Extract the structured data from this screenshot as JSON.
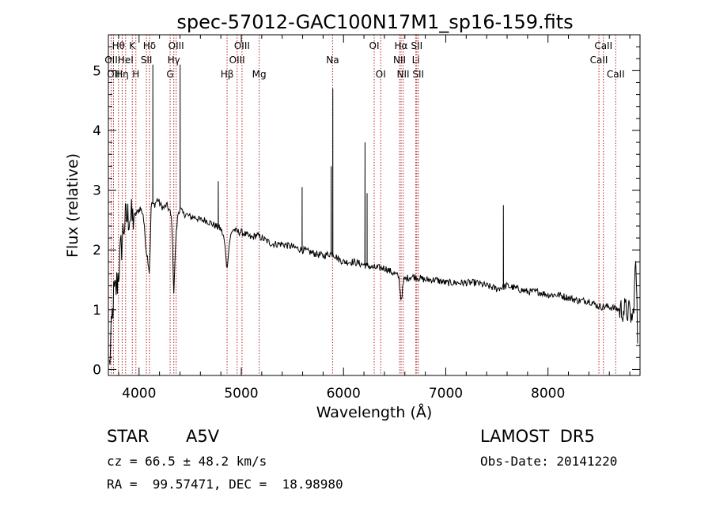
{
  "chart_data": {
    "type": "line",
    "title": "spec-57012-GAC100N17M1_sp16-159.fits",
    "xlabel": "Wavelength (Å)",
    "ylabel": "Flux (relative)",
    "xlim": [
      3700,
      8900
    ],
    "ylim": [
      -0.1,
      5.6
    ],
    "x_ticks": [
      4000,
      5000,
      6000,
      7000,
      8000
    ],
    "y_ticks": [
      0,
      1,
      2,
      3,
      4,
      5
    ],
    "grid": false,
    "line_color": "#000000",
    "marker_color": "#b22222",
    "series": [
      {
        "x": [
          3710,
          3730,
          3750,
          3770,
          3790,
          3810,
          3830,
          3850,
          3870,
          3890,
          3910,
          3930,
          3950,
          3970,
          3990,
          4010,
          4040,
          4070,
          4090,
          4102,
          4120,
          4150,
          4180,
          4210,
          4240,
          4270,
          4300,
          4320,
          4340,
          4360,
          4380,
          4400,
          4430,
          4460,
          4500,
          4550,
          4600,
          4650,
          4700,
          4750,
          4800,
          4830,
          4850,
          4861,
          4870,
          4890,
          4920,
          4960,
          5000,
          5050,
          5100,
          5150,
          5200,
          5300,
          5400,
          5500,
          5600,
          5700,
          5800,
          5890,
          5950,
          6000,
          6100,
          6200,
          6300,
          6400,
          6500,
          6540,
          6563,
          6590,
          6650,
          6700,
          6800,
          6900,
          7000,
          7100,
          7200,
          7300,
          7400,
          7500,
          7600,
          7700,
          7800,
          7900,
          8000,
          8100,
          8200,
          8300,
          8400,
          8500,
          8600,
          8700,
          8750,
          8800,
          8830,
          8860,
          8880
        ],
        "y": [
          0.05,
          0.6,
          1.2,
          1.3,
          1.5,
          1.8,
          2.1,
          2.4,
          2.5,
          2.55,
          2.6,
          2.5,
          2.55,
          2.6,
          2.65,
          2.7,
          2.6,
          2.0,
          1.8,
          1.6,
          2.8,
          2.75,
          2.85,
          2.75,
          2.7,
          2.75,
          2.65,
          2.5,
          1.3,
          2.2,
          2.6,
          2.7,
          2.6,
          2.6,
          2.55,
          2.55,
          2.5,
          2.5,
          2.45,
          2.4,
          2.35,
          2.2,
          1.9,
          1.65,
          1.9,
          2.2,
          2.35,
          2.3,
          2.3,
          2.25,
          2.2,
          2.25,
          2.2,
          2.1,
          2.1,
          2.05,
          2.0,
          1.95,
          1.9,
          1.95,
          1.85,
          1.8,
          1.8,
          1.75,
          1.7,
          1.7,
          1.6,
          1.55,
          1.15,
          1.5,
          1.55,
          1.55,
          1.5,
          1.5,
          1.45,
          1.45,
          1.45,
          1.45,
          1.4,
          1.35,
          1.4,
          1.35,
          1.3,
          1.3,
          1.25,
          1.25,
          1.2,
          1.15,
          1.15,
          1.05,
          1.05,
          1.0,
          1.0,
          0.95,
          0.8,
          1.85,
          0.2
        ]
      }
    ],
    "spikes": [
      {
        "x": 4135,
        "y": 5.1
      },
      {
        "x": 4402,
        "y": 5.1
      },
      {
        "x": 4775,
        "y": 3.15
      },
      {
        "x": 5595,
        "y": 3.05
      },
      {
        "x": 5879,
        "y": 3.4
      },
      {
        "x": 5895,
        "y": 4.7
      },
      {
        "x": 6210,
        "y": 3.8
      },
      {
        "x": 6230,
        "y": 2.95
      },
      {
        "x": 7564,
        "y": 2.75
      }
    ],
    "lines": [
      {
        "x": 3727,
        "label": "OII",
        "row": 1
      },
      {
        "x": 3750,
        "label": "OII",
        "row": 2
      },
      {
        "x": 3799,
        "label": "Hθ",
        "row": 0
      },
      {
        "x": 3835,
        "label": "Hη",
        "row": 2
      },
      {
        "x": 3869,
        "label": "HeI",
        "row": 1
      },
      {
        "x": 3934,
        "label": "K",
        "row": 0
      },
      {
        "x": 3969,
        "label": "H",
        "row": 2
      },
      {
        "x": 4072,
        "label": "SII",
        "row": 1
      },
      {
        "x": 4102,
        "label": "Hδ",
        "row": 0
      },
      {
        "x": 4304,
        "label": "G",
        "row": 2
      },
      {
        "x": 4340,
        "label": "Hγ",
        "row": 1
      },
      {
        "x": 4363,
        "label": "OIII",
        "row": 0
      },
      {
        "x": 4861,
        "label": "Hβ",
        "row": 2
      },
      {
        "x": 4959,
        "label": "OIII",
        "row": 1
      },
      {
        "x": 5007,
        "label": "OIII",
        "row": 0
      },
      {
        "x": 5175,
        "label": "Mg",
        "row": 2
      },
      {
        "x": 5893,
        "label": "Na",
        "row": 1
      },
      {
        "x": 6300,
        "label": "OI",
        "row": 0
      },
      {
        "x": 6364,
        "label": "OI",
        "row": 2
      },
      {
        "x": 6548,
        "label": "NII",
        "row": 1
      },
      {
        "x": 6563,
        "label": "Hα",
        "row": 0
      },
      {
        "x": 6583,
        "label": "NII",
        "row": 2
      },
      {
        "x": 6707,
        "label": "Li",
        "row": 1
      },
      {
        "x": 6716,
        "label": "SII",
        "row": 0
      },
      {
        "x": 6731,
        "label": "SII",
        "row": 2
      },
      {
        "x": 8498,
        "label": "CaII",
        "row": 1
      },
      {
        "x": 8542,
        "label": "CaII",
        "row": 0
      },
      {
        "x": 8662,
        "label": "CaII",
        "row": 2
      }
    ]
  },
  "info": {
    "class": "STAR",
    "subclass": "A5V",
    "survey": "LAMOST  DR5",
    "cz": "cz = 66.5 ± 48.2 km/s",
    "obs_date": "Obs-Date: 20141220",
    "coords": "RA =  99.57471, DEC =  18.98980"
  }
}
